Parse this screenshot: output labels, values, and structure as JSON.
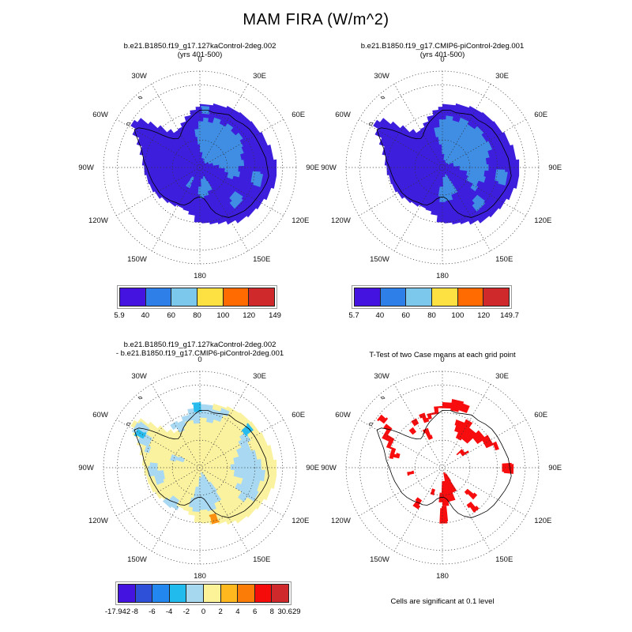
{
  "title": "MAM FIRA (W/m^2)",
  "panels": [
    {
      "id": "case1",
      "title_lines": [
        "b.e21.B1850.f19_g17.127kaControl-2deg.002",
        "(yrs 401-500)"
      ],
      "colorbar": {
        "colors": [
          "#4413df",
          "#2e7fe8",
          "#7cc8ec",
          "#fde042",
          "#ff6b00",
          "#d0292b"
        ],
        "labels": [
          "5.9",
          "40",
          "60",
          "80",
          "100",
          "120",
          "149"
        ]
      }
    },
    {
      "id": "case2",
      "title_lines": [
        "b.e21.B1850.f19_g17.CMIP6-piControl-2deg.001",
        "(yrs 401-500)"
      ],
      "colorbar": {
        "colors": [
          "#4413df",
          "#2e7fe8",
          "#7cc8ec",
          "#fde042",
          "#ff6b00",
          "#d0292b"
        ],
        "labels": [
          "5.7",
          "40",
          "60",
          "80",
          "100",
          "120",
          "149.7"
        ]
      }
    },
    {
      "id": "difference",
      "title_lines": [
        "b.e21.B1850.f19_g17.127kaControl-2deg.002",
        "- b.e21.B1850.f19_g17.CMIP6-piControl-2deg.001"
      ],
      "colorbar": {
        "colors": [
          "#4413df",
          "#2e50d8",
          "#2287ee",
          "#22bbee",
          "#a6d8f0",
          "#fcf398",
          "#ffb91e",
          "#fb7d07",
          "#f60b0b",
          "#d0292b"
        ],
        "labels": [
          "-17.942",
          "-8",
          "-6",
          "-4",
          "-2",
          "0",
          "2",
          "4",
          "6",
          "8",
          "30.629"
        ]
      }
    },
    {
      "id": "ttest",
      "title_lines": [
        "T-Test of two Case means at each grid point"
      ],
      "caption": "Cells are significant at 0.1 level"
    }
  ],
  "map": {
    "lon_labels": [
      "0",
      "30E",
      "60E",
      "90E",
      "120E",
      "150E",
      "180",
      "150W",
      "120W",
      "90W",
      "60W",
      "30W"
    ]
  },
  "colors": {
    "map_fill": "#3d1edc",
    "map_patch": "#3f8ee4",
    "diff_fill": "#fbf2a0",
    "diff_patch": "#a9d9f2",
    "diff_cyan": "#28bcee",
    "diff_orange": "#fb9010",
    "ttest_red": "#f80d0e",
    "coast": "#000000",
    "graticule": "#333333"
  },
  "chart_data": [
    {
      "type": "heatmap",
      "projection": "south_polar_stereographic",
      "season": "MAM",
      "variable": "FIRA",
      "units": "W/m^2",
      "title": "b.e21.B1850.f19_g17.127kaControl-2deg.002 (yrs 401-500)",
      "min": 5.9,
      "max": 149,
      "levels": [
        5.9,
        40,
        60,
        80,
        100,
        120,
        149
      ],
      "palette": [
        "#4413df",
        "#2e7fe8",
        "#7cc8ec",
        "#fde042",
        "#ff6b00",
        "#d0292b"
      ],
      "summary": "Antarctica mostly in 5.9-40 bin (violet-blue); interior East Antarctica patches in 40-60 bin (medium blue)"
    },
    {
      "type": "heatmap",
      "projection": "south_polar_stereographic",
      "season": "MAM",
      "variable": "FIRA",
      "units": "W/m^2",
      "title": "b.e21.B1850.f19_g17.CMIP6-piControl-2deg.001 (yrs 401-500)",
      "min": 5.7,
      "max": 149.7,
      "levels": [
        5.7,
        40,
        60,
        80,
        100,
        120,
        149.7
      ],
      "palette": [
        "#4413df",
        "#2e7fe8",
        "#7cc8ec",
        "#fde042",
        "#ff6b00",
        "#d0292b"
      ],
      "summary": "Antarctica mostly in 5.7-40 bin (violet-blue); larger interior East Antarctica region in 40-60 bin (medium blue)"
    },
    {
      "type": "heatmap",
      "projection": "south_polar_stereographic",
      "title": "b.e21.B1850.f19_g17.127kaControl-2deg.002 - b.e21.B1850.f19_g17.CMIP6-piControl-2deg.001",
      "min": -17.942,
      "max": 30.629,
      "levels": [
        -17.942,
        -8,
        -6,
        -4,
        -2,
        0,
        2,
        4,
        6,
        8,
        30.629
      ],
      "palette": [
        "#4413df",
        "#2e50d8",
        "#2287ee",
        "#22bbee",
        "#a6d8f0",
        "#fcf398",
        "#ffb91e",
        "#fb7d07",
        "#f60b0b",
        "#d0292b"
      ],
      "summary": "Mostly 0-2 (pale yellow) with -2-0 patches (pale blue), a few -4--2 cells (cyan) and one 4-6 cell (orange)"
    },
    {
      "type": "map",
      "projection": "south_polar_stereographic",
      "title": "T-Test of two Case means at each grid point",
      "note": "Cells are significant at 0.1 level",
      "significance_color": "#f80d0e",
      "summary": "Red blocky cells mark grid points where the two case means differ significantly at the 0.1 level"
    }
  ]
}
